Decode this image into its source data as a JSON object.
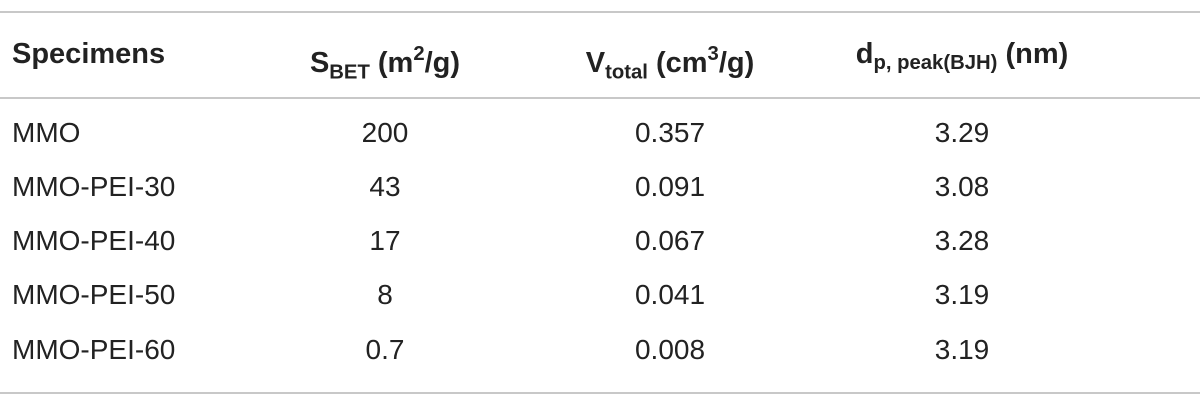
{
  "table": {
    "header": [
      [
        {
          "t": "Specimens"
        }
      ],
      [
        {
          "t": "S"
        },
        {
          "t": "BET",
          "style": "sub"
        },
        {
          "t": " (m"
        },
        {
          "t": "2",
          "style": "sup"
        },
        {
          "t": "/g)"
        }
      ],
      [
        {
          "t": "V"
        },
        {
          "t": "total",
          "style": "sub"
        },
        {
          "t": " (cm"
        },
        {
          "t": "3",
          "style": "sup"
        },
        {
          "t": "/g)"
        }
      ],
      [
        {
          "t": "d"
        },
        {
          "t": "p, peak(BJH)",
          "style": "sub"
        },
        {
          "t": " (nm)"
        }
      ]
    ],
    "rows": [
      [
        "MMO",
        "200",
        "0.357",
        "3.29"
      ],
      [
        "MMO-PEI-30",
        "43",
        "0.091",
        "3.08"
      ],
      [
        "MMO-PEI-40",
        "17",
        "0.067",
        "3.28"
      ],
      [
        "MMO-PEI-50",
        "8",
        "0.041",
        "3.19"
      ],
      [
        "MMO-PEI-60",
        "0.7",
        "0.008",
        "3.19"
      ]
    ]
  }
}
